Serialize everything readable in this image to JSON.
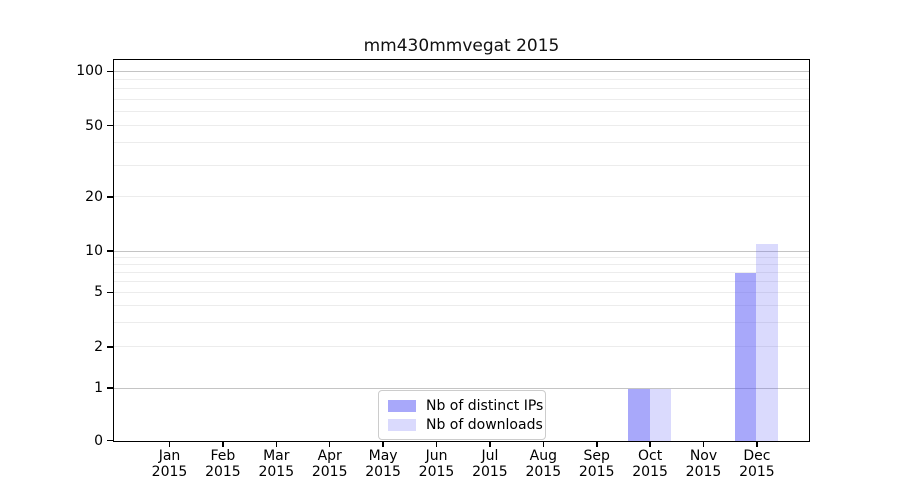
{
  "figure": {
    "background": "#ffffff",
    "axis_color": "#000000"
  },
  "chart_data": {
    "type": "bar",
    "title": "mm430mmvegat 2015",
    "xlabel": "",
    "ylabel": "",
    "x": {
      "categories": [
        "Jan",
        "Feb",
        "Mar",
        "Apr",
        "May",
        "Jun",
        "Jul",
        "Aug",
        "Sep",
        "Oct",
        "Nov",
        "Dec"
      ],
      "year_label": "2015"
    },
    "series": [
      {
        "name": "Nb of distinct IPs",
        "color": "rgba(85,85,245,0.51)",
        "values": [
          0,
          0,
          0,
          0,
          0,
          0,
          0,
          0,
          0,
          1,
          0,
          7
        ]
      },
      {
        "name": "Nb of downloads",
        "color": "rgba(85,85,245,0.22)",
        "values": [
          0,
          0,
          0,
          0,
          0,
          0,
          0,
          0,
          0,
          1,
          0,
          11
        ]
      }
    ],
    "y_axis": {
      "ticks": [
        0,
        1,
        2,
        5,
        10,
        20,
        50,
        100
      ],
      "scale": "log-like (linear 0-1, log above)",
      "range": [
        0,
        115
      ]
    },
    "legend": {
      "location": "lower center"
    },
    "grid": {
      "orientation": "horizontal",
      "major_lines_at": [
        1,
        10,
        100
      ],
      "major_color": "#c4c4c4",
      "minor_color": "#ececec"
    }
  }
}
